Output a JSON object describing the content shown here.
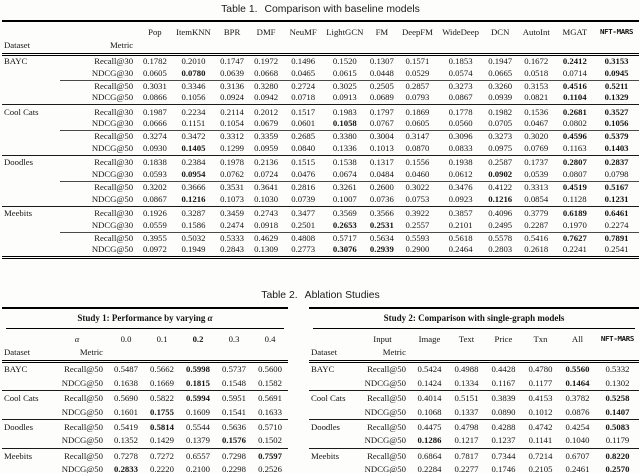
{
  "table1": {
    "caption": {
      "label": "Table 1.",
      "text": "Comparison with baseline models"
    },
    "header": {
      "dataset": "Dataset",
      "metric": "Metric"
    },
    "models": [
      "Pop",
      "ItemKNN",
      "BPR",
      "DMF",
      "NeuMF",
      "LightGCN",
      "FM",
      "DeepFM",
      "WideDeep",
      "DCN",
      "AutoInt",
      "MGAT",
      "NFT-MARS"
    ],
    "special_header_indices": [
      12
    ],
    "groups": [
      {
        "dataset": "BAYC",
        "rows": [
          {
            "metric": "Recall@30",
            "values": [
              "0.1782",
              "0.2010",
              "0.1747",
              "0.1972",
              "0.1496",
              "0.1520",
              "0.1307",
              "0.1571",
              "0.1853",
              "0.1947",
              "0.1672",
              "0.2412",
              "0.3153"
            ],
            "bold": [
              11,
              12
            ]
          },
          {
            "metric": "NDCG@30",
            "values": [
              "0.0605",
              "0.0780",
              "0.0639",
              "0.0668",
              "0.0465",
              "0.0615",
              "0.0448",
              "0.0529",
              "0.0574",
              "0.0665",
              "0.0518",
              "0.0714",
              "0.0945"
            ],
            "bold": [
              1,
              12
            ]
          },
          {
            "metric": "Recall@50",
            "values": [
              "0.3031",
              "0.3346",
              "0.3136",
              "0.3280",
              "0.2724",
              "0.3025",
              "0.2505",
              "0.2857",
              "0.3273",
              "0.3260",
              "0.3153",
              "0.4516",
              "0.5211"
            ],
            "bold": [
              11,
              12
            ]
          },
          {
            "metric": "NDCG@50",
            "values": [
              "0.0866",
              "0.1056",
              "0.0924",
              "0.0942",
              "0.0718",
              "0.0913",
              "0.0689",
              "0.0793",
              "0.0867",
              "0.0939",
              "0.0821",
              "0.1104",
              "0.1329"
            ],
            "bold": [
              11,
              12
            ]
          }
        ]
      },
      {
        "dataset": "Cool Cats",
        "rows": [
          {
            "metric": "Recall@30",
            "values": [
              "0.1987",
              "0.2234",
              "0.2114",
              "0.2012",
              "0.1517",
              "0.1983",
              "0.1797",
              "0.1869",
              "0.1778",
              "0.1982",
              "0.1536",
              "0.2681",
              "0.3527"
            ],
            "bold": [
              11,
              12
            ]
          },
          {
            "metric": "NDCG@30",
            "values": [
              "0.0666",
              "0.1151",
              "0.1054",
              "0.0679",
              "0.0601",
              "0.1058",
              "0.0767",
              "0.0605",
              "0.0560",
              "0.0705",
              "0.0467",
              "0.0802",
              "0.1056"
            ],
            "bold": [
              5,
              12
            ]
          },
          {
            "metric": "Recall@50",
            "values": [
              "0.3274",
              "0.3472",
              "0.3312",
              "0.3359",
              "0.2685",
              "0.3380",
              "0.3004",
              "0.3147",
              "0.3096",
              "0.3273",
              "0.3020",
              "0.4596",
              "0.5379"
            ],
            "bold": [
              11,
              12
            ]
          },
          {
            "metric": "NDCG@50",
            "values": [
              "0.0930",
              "0.1405",
              "0.1299",
              "0.0959",
              "0.0840",
              "0.1336",
              "0.1013",
              "0.0870",
              "0.0833",
              "0.0975",
              "0.0769",
              "0.1163",
              "0.1403"
            ],
            "bold": [
              1,
              12
            ]
          }
        ]
      },
      {
        "dataset": "Doodles",
        "rows": [
          {
            "metric": "Recall@30",
            "values": [
              "0.1838",
              "0.2384",
              "0.1978",
              "0.2136",
              "0.1515",
              "0.1538",
              "0.1317",
              "0.1556",
              "0.1938",
              "0.2587",
              "0.1737",
              "0.2807",
              "0.2837"
            ],
            "bold": [
              11,
              12
            ]
          },
          {
            "metric": "NDCG@30",
            "values": [
              "0.0593",
              "0.0954",
              "0.0762",
              "0.0724",
              "0.0476",
              "0.0674",
              "0.0484",
              "0.0460",
              "0.0612",
              "0.0902",
              "0.0539",
              "0.0807",
              "0.0798"
            ],
            "bold": [
              1,
              9
            ]
          },
          {
            "metric": "Recall@50",
            "values": [
              "0.3202",
              "0.3666",
              "0.3531",
              "0.3641",
              "0.2816",
              "0.3261",
              "0.2600",
              "0.3022",
              "0.3476",
              "0.4122",
              "0.3313",
              "0.4519",
              "0.5167"
            ],
            "bold": [
              11,
              12
            ]
          },
          {
            "metric": "NDCG@50",
            "values": [
              "0.0867",
              "0.1216",
              "0.1073",
              "0.1030",
              "0.0739",
              "0.1007",
              "0.0736",
              "0.0753",
              "0.0923",
              "0.1216",
              "0.0854",
              "0.1128",
              "0.1231"
            ],
            "bold": [
              1,
              9,
              12
            ]
          }
        ]
      },
      {
        "dataset": "Meebits",
        "rows": [
          {
            "metric": "Recall@30",
            "values": [
              "0.1926",
              "0.3287",
              "0.3459",
              "0.2743",
              "0.3477",
              "0.3569",
              "0.3566",
              "0.3922",
              "0.3857",
              "0.4096",
              "0.3779",
              "0.6189",
              "0.6461"
            ],
            "bold": [
              11,
              12
            ]
          },
          {
            "metric": "NDCG@30",
            "values": [
              "0.0559",
              "0.1586",
              "0.2474",
              "0.0918",
              "0.2501",
              "0.2653",
              "0.2531",
              "0.2557",
              "0.2101",
              "0.2495",
              "0.2287",
              "0.1970",
              "0.2274"
            ],
            "bold": [
              5,
              6
            ]
          },
          {
            "metric": "Recall@50",
            "values": [
              "0.3955",
              "0.5032",
              "0.5333",
              "0.4629",
              "0.4808",
              "0.5717",
              "0.5634",
              "0.5593",
              "0.5618",
              "0.5578",
              "0.5416",
              "0.7627",
              "0.7891"
            ],
            "bold": [
              11,
              12
            ]
          },
          {
            "metric": "NDCG@50",
            "values": [
              "0.0972",
              "0.1949",
              "0.2843",
              "0.1309",
              "0.2773",
              "0.3076",
              "0.2939",
              "0.2900",
              "0.2464",
              "0.2803",
              "0.2618",
              "0.2241",
              "0.2541"
            ],
            "bold": [
              5,
              6
            ]
          }
        ]
      }
    ]
  },
  "table2": {
    "caption": {
      "label": "Table 2.",
      "text": "Ablation Studies"
    },
    "study1": {
      "title": {
        "text": "Study 1: Performance by varying",
        "symbol": "α"
      },
      "header": {
        "dataset": "Dataset",
        "metric": "Metric",
        "top_label": "α",
        "top_italic": true
      },
      "columns": [
        "0.0",
        "0.1",
        "0.2",
        "0.3",
        "0.4"
      ],
      "bold_header_indices": [
        2
      ],
      "groups": [
        {
          "dataset": "BAYC",
          "rows": [
            {
              "metric": "Recall@50",
              "values": [
                "0.5487",
                "0.5662",
                "0.5998",
                "0.5737",
                "0.5600"
              ],
              "bold": [
                2
              ]
            },
            {
              "metric": "NDCG@50",
              "values": [
                "0.1638",
                "0.1669",
                "0.1815",
                "0.1548",
                "0.1582"
              ],
              "bold": [
                2
              ]
            }
          ]
        },
        {
          "dataset": "Cool Cats",
          "rows": [
            {
              "metric": "Recall@50",
              "values": [
                "0.5690",
                "0.5822",
                "0.5994",
                "0.5951",
                "0.5691"
              ],
              "bold": [
                2
              ]
            },
            {
              "metric": "NDCG@50",
              "values": [
                "0.1601",
                "0.1755",
                "0.1609",
                "0.1541",
                "0.1633"
              ],
              "bold": [
                1
              ]
            }
          ]
        },
        {
          "dataset": "Doodles",
          "rows": [
            {
              "metric": "Recall@50",
              "values": [
                "0.5419",
                "0.5814",
                "0.5544",
                "0.5636",
                "0.5710"
              ],
              "bold": [
                1
              ]
            },
            {
              "metric": "NDCG@50",
              "values": [
                "0.1352",
                "0.1429",
                "0.1379",
                "0.1576",
                "0.1502"
              ],
              "bold": [
                3
              ]
            }
          ]
        },
        {
          "dataset": "Meebits",
          "rows": [
            {
              "metric": "Recall@50",
              "values": [
                "0.7278",
                "0.7272",
                "0.6557",
                "0.7298",
                "0.7597"
              ],
              "bold": [
                4
              ]
            },
            {
              "metric": "NDCG@50",
              "values": [
                "0.2833",
                "0.2220",
                "0.2100",
                "0.2298",
                "0.2526"
              ],
              "bold": [
                0
              ]
            }
          ]
        }
      ]
    },
    "study2": {
      "title": {
        "text": "Study 2: Comparison with single-graph models",
        "symbol": ""
      },
      "header": {
        "dataset": "Dataset",
        "metric": "Metric",
        "top_label": "Input",
        "top_italic": false
      },
      "columns": [
        "Image",
        "Text",
        "Price",
        "Txn",
        "All",
        "NFT-MARS"
      ],
      "special_header_indices": [
        5
      ],
      "groups": [
        {
          "dataset": "BAYC",
          "rows": [
            {
              "metric": "Recall@50",
              "values": [
                "0.5424",
                "0.4988",
                "0.4428",
                "0.4780",
                "0.5560",
                "0.5332"
              ],
              "bold": [
                4
              ]
            },
            {
              "metric": "NDCG@50",
              "values": [
                "0.1424",
                "0.1334",
                "0.1167",
                "0.1177",
                "0.1464",
                "0.1302"
              ],
              "bold": [
                4
              ]
            }
          ]
        },
        {
          "dataset": "Cool Cats",
          "rows": [
            {
              "metric": "Recall@50",
              "values": [
                "0.4014",
                "0.5151",
                "0.3839",
                "0.4153",
                "0.3782",
                "0.5258"
              ],
              "bold": [
                5
              ]
            },
            {
              "metric": "NDCG@50",
              "values": [
                "0.1068",
                "0.1337",
                "0.0890",
                "0.1012",
                "0.0876",
                "0.1407"
              ],
              "bold": [
                5
              ]
            }
          ]
        },
        {
          "dataset": "Doodles",
          "rows": [
            {
              "metric": "Recall@50",
              "values": [
                "0.4475",
                "0.4798",
                "0.4288",
                "0.4742",
                "0.4254",
                "0.5083"
              ],
              "bold": [
                5
              ]
            },
            {
              "metric": "NDCG@50",
              "values": [
                "0.1286",
                "0.1217",
                "0.1237",
                "0.1141",
                "0.1040",
                "0.1179"
              ],
              "bold": [
                0
              ]
            }
          ]
        },
        {
          "dataset": "Meebits",
          "rows": [
            {
              "metric": "Recall@50",
              "values": [
                "0.6864",
                "0.7817",
                "0.7344",
                "0.7214",
                "0.6707",
                "0.8220"
              ],
              "bold": [
                5
              ]
            },
            {
              "metric": "NDCG@50",
              "values": [
                "0.2284",
                "0.2277",
                "0.1746",
                "0.2105",
                "0.2461",
                "0.2570"
              ],
              "bold": [
                5
              ]
            }
          ]
        }
      ]
    }
  }
}
